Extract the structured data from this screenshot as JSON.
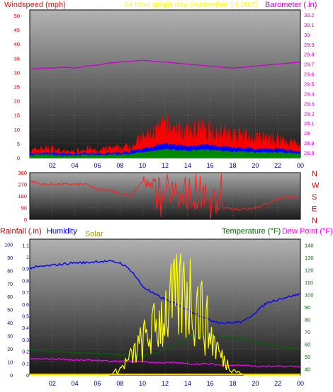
{
  "header": {
    "left": "Windspeed (mph)",
    "center": "24 hour graph day   September 14 2025",
    "right": "Barometer (.in)"
  },
  "colors": {
    "wind_label": "#e01010",
    "title": "#ffff00",
    "baro": "#cc00cc",
    "wind_bar": "#ff0000",
    "wind_avg": "#0000ff",
    "wind_low": "#008800",
    "dir_line": "#ff2020",
    "rain": "#ffcc00",
    "humidity": "#0000ff",
    "solar": "#ffff00",
    "temperature": "#006600",
    "dewpoint": "#ff00ff",
    "axis_time": "#000080"
  },
  "x_ticks": [
    "02",
    "04",
    "06",
    "08",
    "10",
    "12",
    "14",
    "16",
    "18",
    "20",
    "22",
    "00"
  ],
  "wind_panel": {
    "left_ticks": [
      "0",
      "5",
      "10",
      "15",
      "20",
      "25",
      "30",
      "35",
      "40",
      "45",
      "50"
    ],
    "right_ticks": [
      "28.8",
      "28.9",
      "29",
      "29.1",
      "29.2",
      "29.3",
      "29.4",
      "29.5",
      "29.6",
      "29.7",
      "29.8",
      "29.9",
      "30",
      "30.1",
      "30.2"
    ]
  },
  "dir_panel": {
    "left_ticks": [
      "0",
      "90",
      "180",
      "270",
      "360"
    ],
    "right_labels": [
      "N",
      "W",
      "S",
      "E",
      "N"
    ]
  },
  "env_panel": {
    "labels": {
      "rain": "Rainfall (.in)",
      "humidity": "Humidity",
      "solar": "Solar",
      "temperature": "Temperature (°F)",
      "dewpoint": "Dew Point (°F)"
    },
    "rain_ticks": [
      "0",
      "0.1",
      "0.2",
      "0.3",
      "0.4",
      "0.5",
      "0.6",
      "0.7",
      "0.8",
      "0.9",
      "1",
      "1.1"
    ],
    "humidity_ticks": [
      "0",
      "10",
      "20",
      "30",
      "40",
      "50",
      "60",
      "70",
      "80",
      "90",
      "100"
    ],
    "temp_ticks": [
      "40",
      "50",
      "60",
      "70",
      "80",
      "90",
      "100",
      "110",
      "120",
      "130",
      "140"
    ]
  },
  "chart_data": [
    {
      "type": "line",
      "title": "24 hour graph day   September 14 2025",
      "x": [
        0,
        1,
        2,
        3,
        4,
        5,
        6,
        7,
        8,
        9,
        10,
        11,
        12,
        13,
        14,
        15,
        16,
        17,
        18,
        19,
        20,
        21,
        22,
        23,
        24
      ],
      "series": [
        {
          "name": "Windspeed (mph)",
          "axis": "left",
          "ylim": [
            0,
            50
          ],
          "values": [
            2,
            3,
            3,
            2,
            2,
            3,
            2,
            3,
            3,
            4,
            6,
            8,
            10,
            9,
            8,
            9,
            9,
            8,
            7,
            7,
            6,
            6,
            6,
            5,
            4
          ]
        },
        {
          "name": "Barometer (.in)",
          "axis": "right",
          "ylim": [
            28.75,
            30.25
          ],
          "values": [
            29.65,
            29.66,
            29.66,
            29.67,
            29.66,
            29.68,
            29.69,
            29.71,
            29.72,
            29.73,
            29.74,
            29.73,
            29.72,
            29.71,
            29.7,
            29.69,
            29.68,
            29.67,
            29.66,
            29.67,
            29.68,
            29.69,
            29.7,
            29.71,
            29.72
          ]
        }
      ]
    },
    {
      "type": "line",
      "series": [
        {
          "name": "Wind direction",
          "ylim": [
            0,
            360
          ],
          "values": [
            300,
            270,
            270,
            270,
            270,
            270,
            230,
            230,
            200,
            180,
            300,
            260,
            280,
            210,
            150,
            120,
            110,
            100,
            80,
            80,
            90,
            120,
            160,
            180,
            160
          ]
        }
      ]
    },
    {
      "type": "line",
      "x": [
        0,
        1,
        2,
        3,
        4,
        5,
        6,
        7,
        8,
        9,
        10,
        11,
        12,
        13,
        14,
        15,
        16,
        17,
        18,
        19,
        20,
        21,
        22,
        23,
        24
      ],
      "series": [
        {
          "name": "Rainfall (.in)",
          "ylim": [
            0,
            1.15
          ],
          "values": [
            0,
            0,
            0,
            0,
            0,
            0,
            0,
            0,
            0,
            0,
            0,
            0,
            0,
            0,
            0,
            0,
            0,
            0,
            0,
            0,
            0,
            0,
            0,
            0,
            0
          ]
        },
        {
          "name": "Humidity",
          "ylim": [
            0,
            100
          ],
          "values": [
            82,
            83,
            84,
            85,
            86,
            86,
            87,
            87,
            86,
            80,
            68,
            62,
            58,
            54,
            50,
            46,
            42,
            40,
            40,
            41,
            48,
            55,
            58,
            60,
            62
          ]
        },
        {
          "name": "Solar",
          "ylim": [
            0,
            100
          ],
          "values": [
            0,
            0,
            0,
            0,
            0,
            0,
            0,
            0,
            5,
            15,
            28,
            38,
            55,
            62,
            72,
            58,
            35,
            15,
            5,
            0,
            0,
            0,
            0,
            0,
            0
          ]
        },
        {
          "name": "Temperature (°F)",
          "ylim": [
            35,
            145
          ],
          "values": [
            55,
            55,
            54,
            54,
            53,
            53,
            52,
            52,
            51,
            51,
            51,
            52,
            56,
            60,
            64,
            68,
            67,
            66,
            65,
            64,
            62,
            60,
            58,
            57,
            56
          ]
        },
        {
          "name": "Dew Point (°F)",
          "ylim": [
            35,
            145
          ],
          "values": [
            48,
            48,
            48,
            48,
            47,
            47,
            47,
            46,
            46,
            46,
            46,
            45,
            45,
            45,
            44,
            44,
            44,
            43,
            43,
            43,
            42,
            42,
            42,
            42,
            42
          ]
        }
      ]
    }
  ]
}
